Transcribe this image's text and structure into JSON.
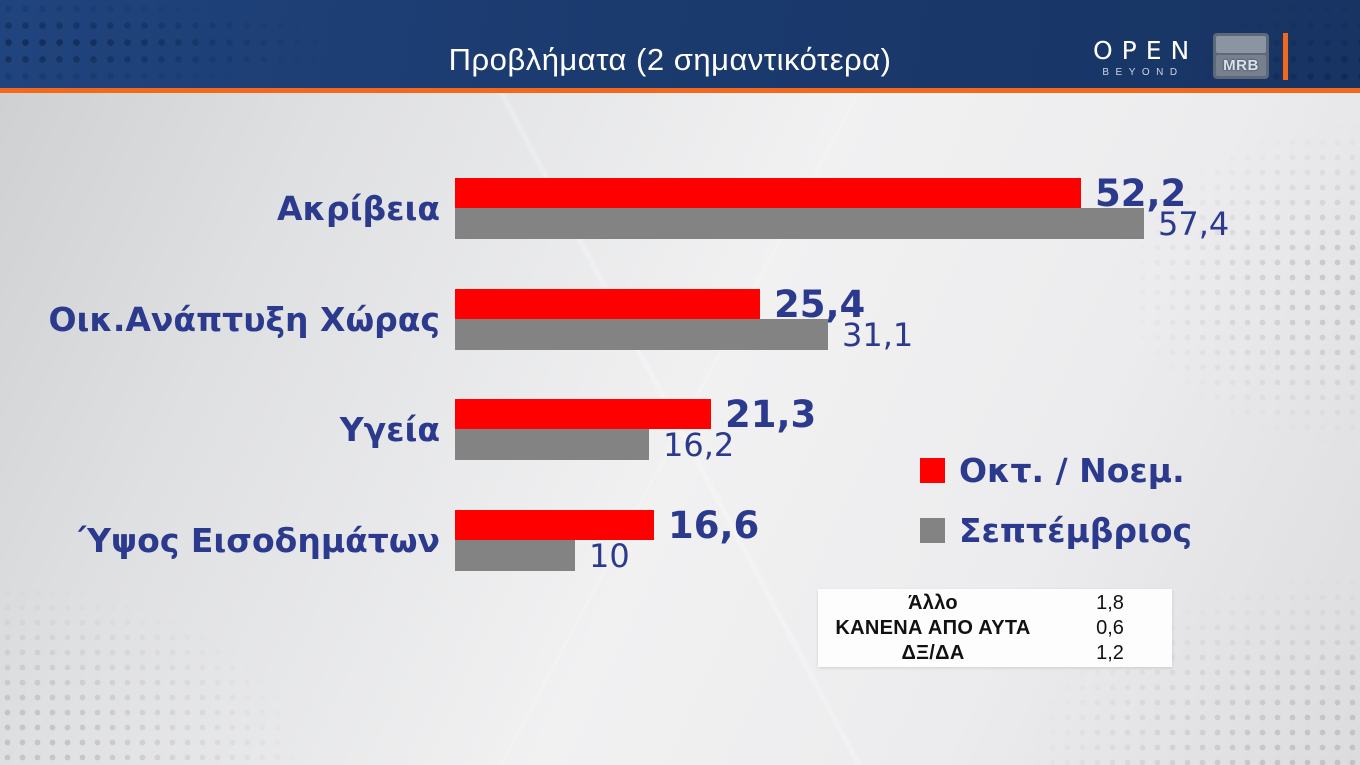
{
  "header": {
    "title": "Προβλήματα (2 σημαντικότερα)",
    "open_logo": {
      "text": "OPEN",
      "subtext": "BEYOND"
    },
    "mrb_logo_text": "MRB"
  },
  "colors": {
    "header_blue": "#1b3a6e",
    "accent_orange": "#f2691e",
    "bar_red": "#fe0000",
    "bar_gray": "#838383",
    "label_blue": "#2c3a8e",
    "background_gray": "#e4e4e6"
  },
  "chart_data": {
    "type": "bar",
    "orientation": "horizontal",
    "title": "Προβλήματα (2 σημαντικότερα)",
    "categories": [
      "Ακρίβεια",
      "Οικ.Ανάπτυξη Χώρας",
      "Υγεία",
      "Ύψος Εισοδημάτων"
    ],
    "series": [
      {
        "name": "Οκτ. / Νοεμ.",
        "color": "#fe0000",
        "values": [
          52.2,
          25.4,
          21.3,
          16.6
        ],
        "labels": [
          "52,2",
          "25,4",
          "21,3",
          "16,6"
        ]
      },
      {
        "name": "Σεπτέμβριος",
        "color": "#838383",
        "values": [
          57.4,
          31.1,
          16.2,
          10
        ],
        "labels": [
          "57,4",
          "31,1",
          "16,2",
          "10"
        ]
      }
    ],
    "xlim": [
      0,
      60
    ],
    "grid": false,
    "legend_position": "right-middle",
    "value_labels": "end-of-bar"
  },
  "others_table": {
    "rows": [
      {
        "label": "Άλλο",
        "value": "1,8"
      },
      {
        "label": "ΚΑΝΕΝΑ ΑΠΟ ΑΥΤΑ",
        "value": "0,6"
      },
      {
        "label": "ΔΞ/ΔΑ",
        "value": "1,2"
      }
    ]
  }
}
